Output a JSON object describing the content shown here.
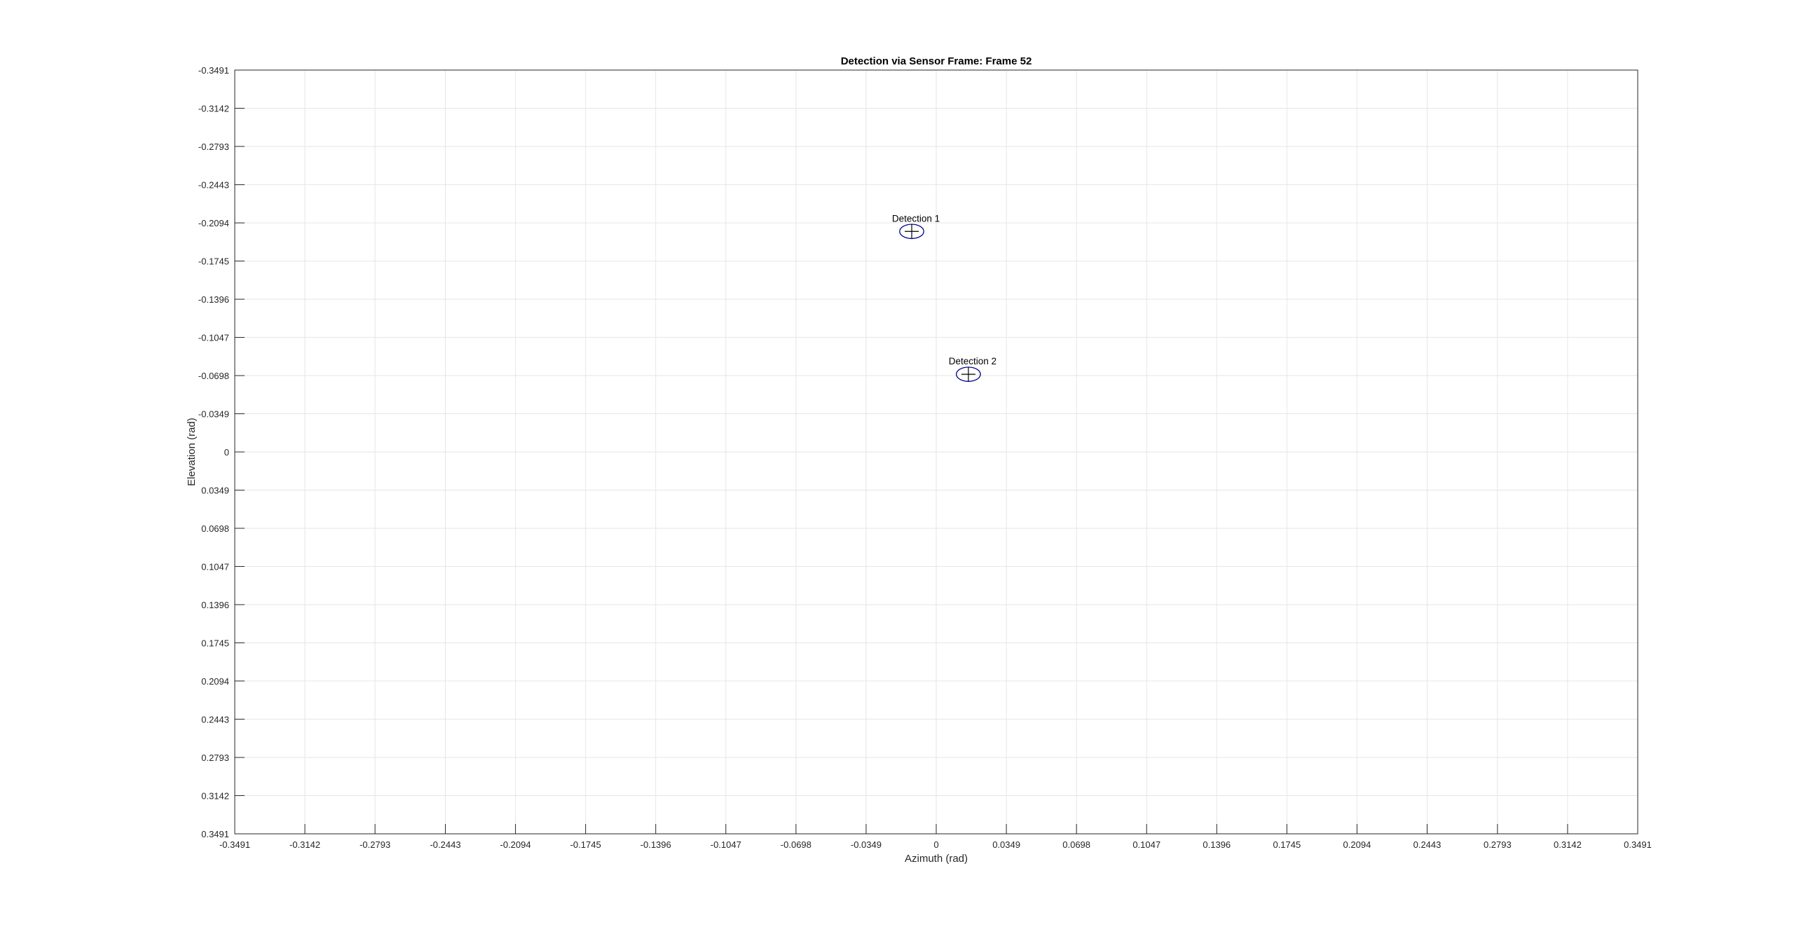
{
  "chart_data": {
    "type": "scatter",
    "title": "Detection via Sensor Frame: Frame 52",
    "xlabel": "Azimuth (rad)",
    "ylabel": "Elevation (rad)",
    "xlim": [
      -0.3491,
      0.3491
    ],
    "ylim": [
      -0.3491,
      0.3491
    ],
    "y_direction": "reverse",
    "grid": true,
    "xticks": [
      "-0.3491",
      "-0.3142",
      "-0.2793",
      "-0.2443",
      "-0.2094",
      "-0.1745",
      "-0.1396",
      "-0.1047",
      "-0.0698",
      "-0.0349",
      "0",
      "0.0349",
      "0.0698",
      "0.1047",
      "0.1396",
      "0.1745",
      "0.2094",
      "0.2443",
      "0.2793",
      "0.3142",
      "0.3491"
    ],
    "yticks": [
      "-0.3491",
      "-0.3142",
      "-0.2793",
      "-0.2443",
      "-0.2094",
      "-0.1745",
      "-0.1396",
      "-0.1047",
      "-0.0698",
      "-0.0349",
      "0",
      "0.0349",
      "0.0698",
      "0.1047",
      "0.1396",
      "0.1745",
      "0.2094",
      "0.2443",
      "0.2793",
      "0.3142",
      "0.3491"
    ],
    "points": [
      {
        "label": "Detection 1",
        "x": -0.0122,
        "y": -0.2016,
        "ellipse_rx": 0.006,
        "ellipse_ry": 0.0065
      },
      {
        "label": "Detection 2",
        "x": 0.016,
        "y": -0.071,
        "ellipse_rx": 0.006,
        "ellipse_ry": 0.0065
      }
    ],
    "marker": "plus",
    "ellipse_color": "#00008b",
    "marker_color": "#000000",
    "grid_color": "#e6e6e6",
    "axis_color": "#262626"
  }
}
